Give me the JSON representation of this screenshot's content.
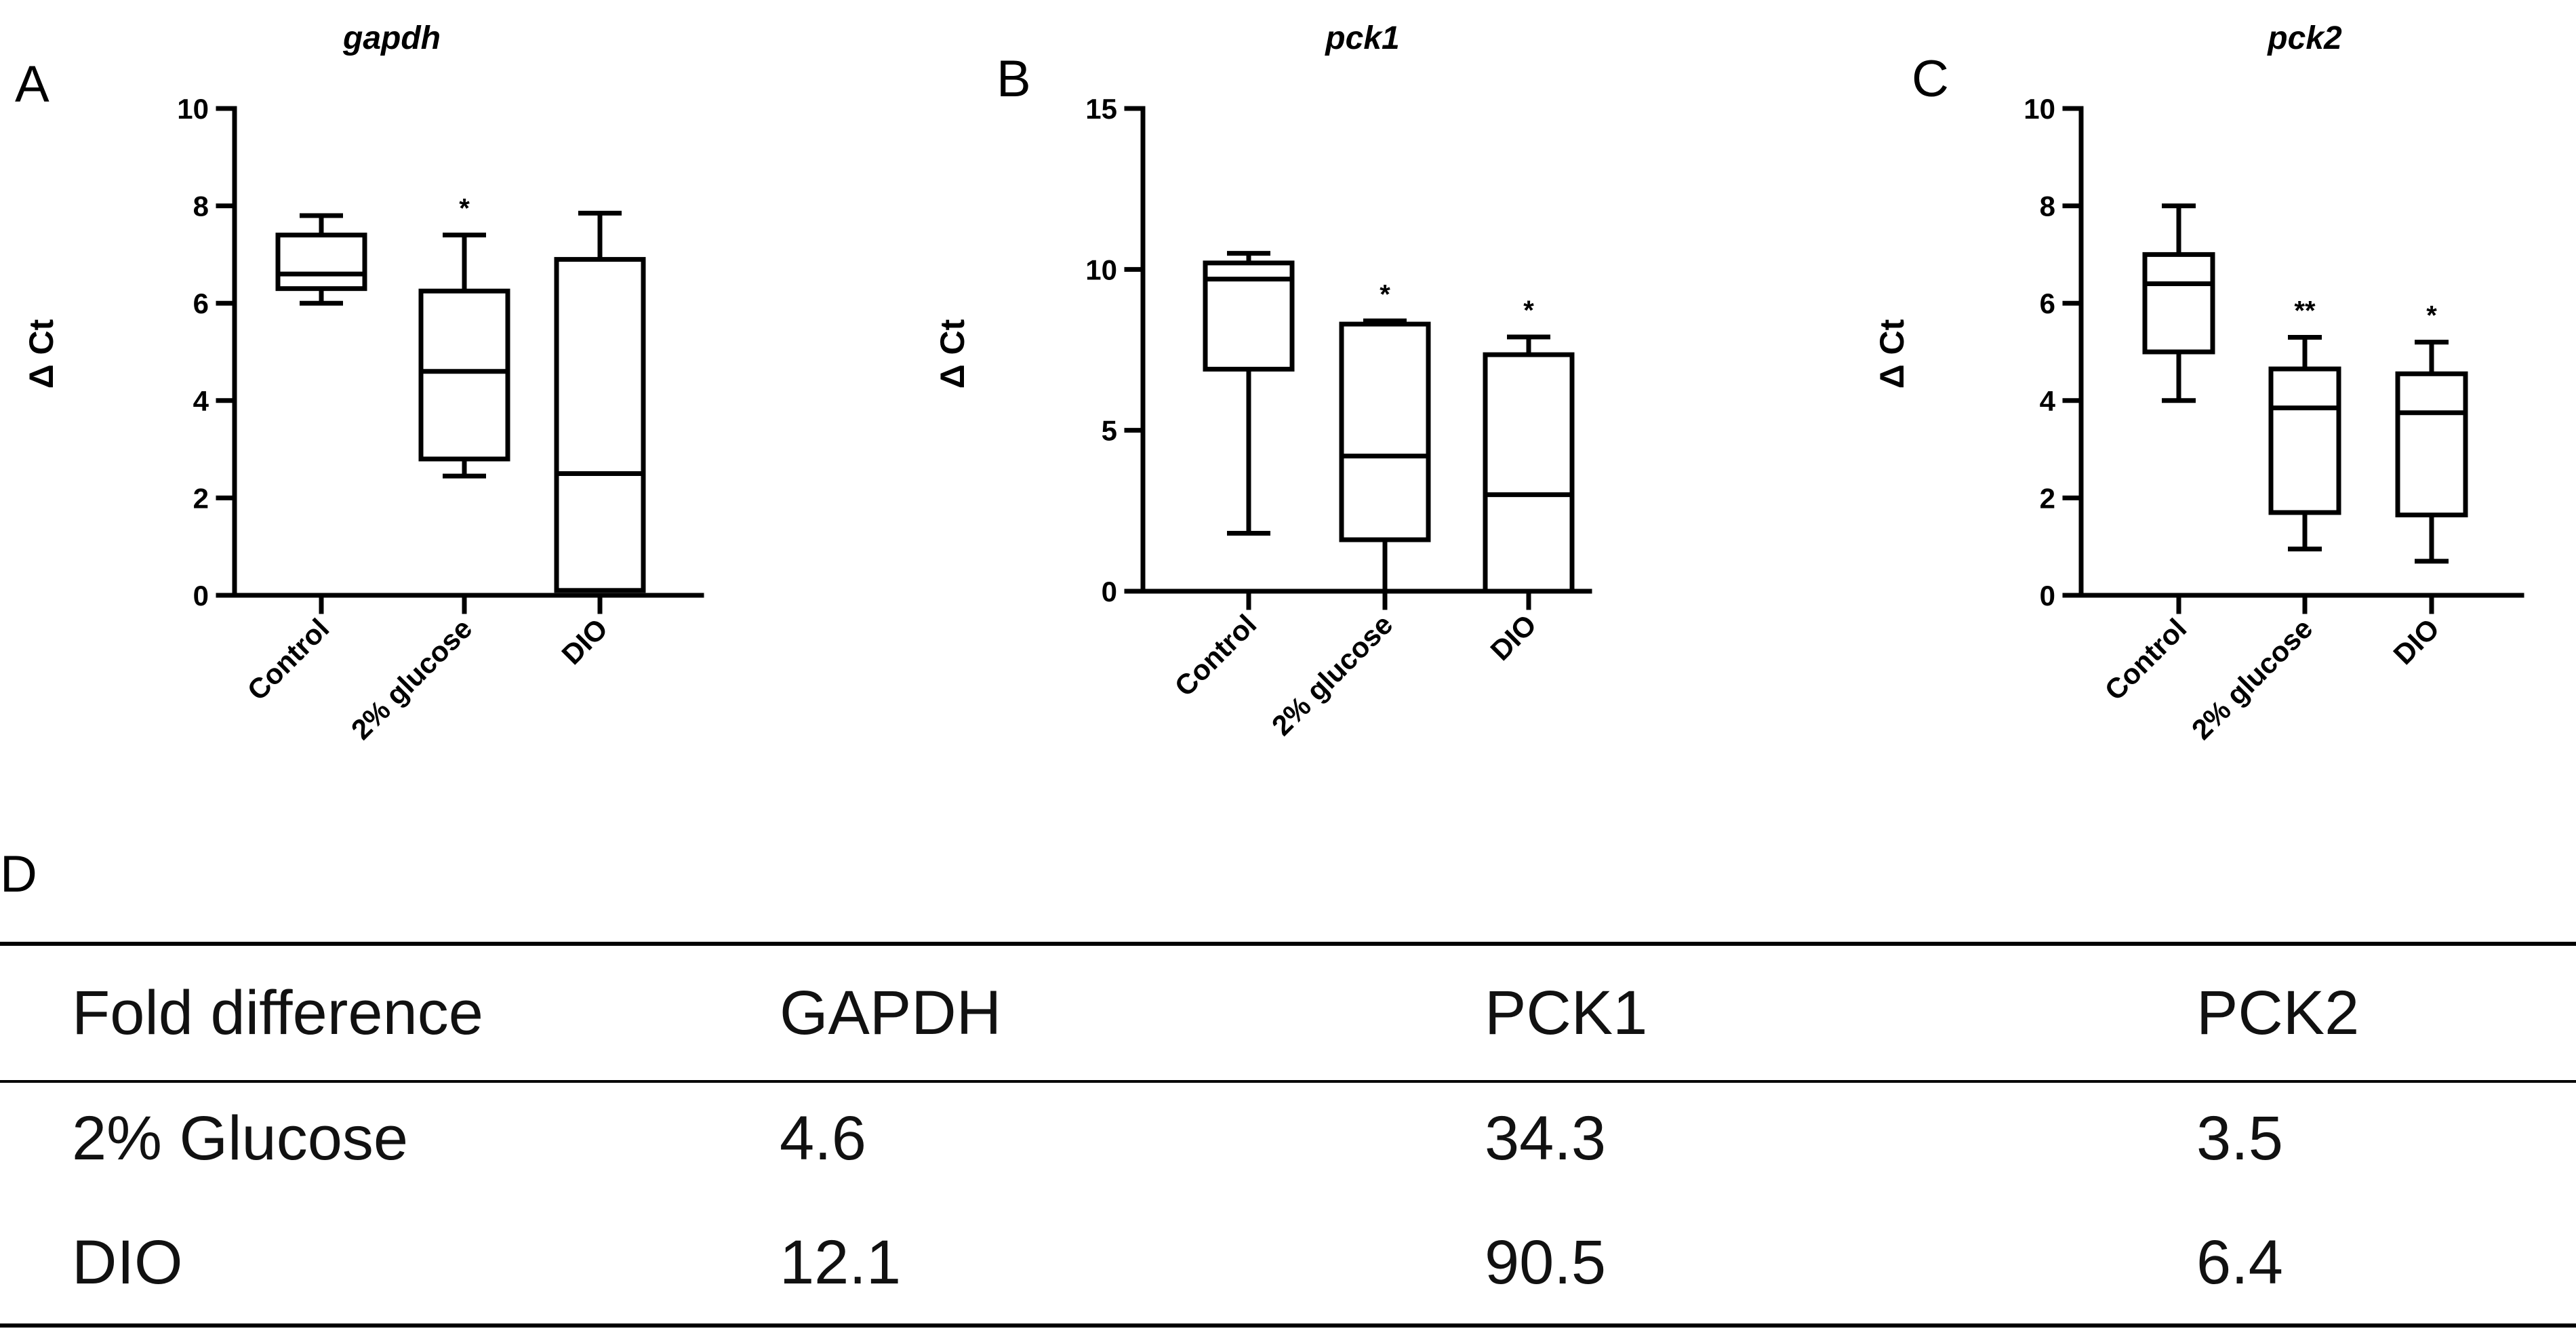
{
  "panels": [
    "A",
    "B",
    "C",
    "D"
  ],
  "chart_data": [
    {
      "type": "box",
      "title": "gapdh",
      "ylabel": "Δ Ct",
      "ylim": [
        0,
        10
      ],
      "yticks": [
        0,
        2,
        4,
        6,
        8,
        10
      ],
      "categories": [
        "Control",
        "2% glucose",
        "DIO"
      ],
      "boxes": [
        {
          "min": 6.0,
          "q1": 6.3,
          "median": 6.6,
          "q3": 7.4,
          "max": 7.8,
          "sig": ""
        },
        {
          "min": 2.45,
          "q1": 2.8,
          "median": 4.6,
          "q3": 6.25,
          "max": 7.4,
          "sig": "*"
        },
        {
          "min": 0.1,
          "q1": 0.1,
          "median": 2.5,
          "q3": 6.9,
          "max": 7.85,
          "sig": ""
        }
      ]
    },
    {
      "type": "box",
      "title": "pck1",
      "ylabel": "Δ Ct",
      "ylim": [
        0,
        15
      ],
      "yticks": [
        0,
        5,
        10,
        15
      ],
      "categories": [
        "Control",
        "2% glucose",
        "DIO"
      ],
      "boxes": [
        {
          "min": 1.8,
          "q1": 6.9,
          "median": 9.7,
          "q3": 10.2,
          "max": 10.5,
          "sig": ""
        },
        {
          "min": 0.0,
          "q1": 1.6,
          "median": 4.2,
          "q3": 8.3,
          "max": 8.4,
          "sig": "*"
        },
        {
          "min": 0.0,
          "q1": 0.0,
          "median": 3.0,
          "q3": 7.35,
          "max": 7.9,
          "sig": "*"
        }
      ]
    },
    {
      "type": "box",
      "title": "pck2",
      "ylabel": "Δ Ct",
      "ylim": [
        0,
        10
      ],
      "yticks": [
        0,
        2,
        4,
        6,
        8,
        10
      ],
      "categories": [
        "Control",
        "2% glucose",
        "DIO"
      ],
      "boxes": [
        {
          "min": 4.0,
          "q1": 5.0,
          "median": 6.4,
          "q3": 7.0,
          "max": 8.0,
          "sig": ""
        },
        {
          "min": 0.95,
          "q1": 1.7,
          "median": 3.85,
          "q3": 4.65,
          "max": 5.3,
          "sig": "**"
        },
        {
          "min": 0.7,
          "q1": 1.65,
          "median": 3.75,
          "q3": 4.55,
          "max": 5.2,
          "sig": "*"
        }
      ]
    },
    {
      "type": "table",
      "columns": [
        "Fold difference",
        "GAPDH",
        "PCK1",
        "PCK2"
      ],
      "rows": [
        [
          "2% Glucose",
          "4.6",
          "34.3",
          "3.5"
        ],
        [
          "DIO",
          "12.1",
          "90.5",
          "6.4"
        ]
      ]
    }
  ]
}
